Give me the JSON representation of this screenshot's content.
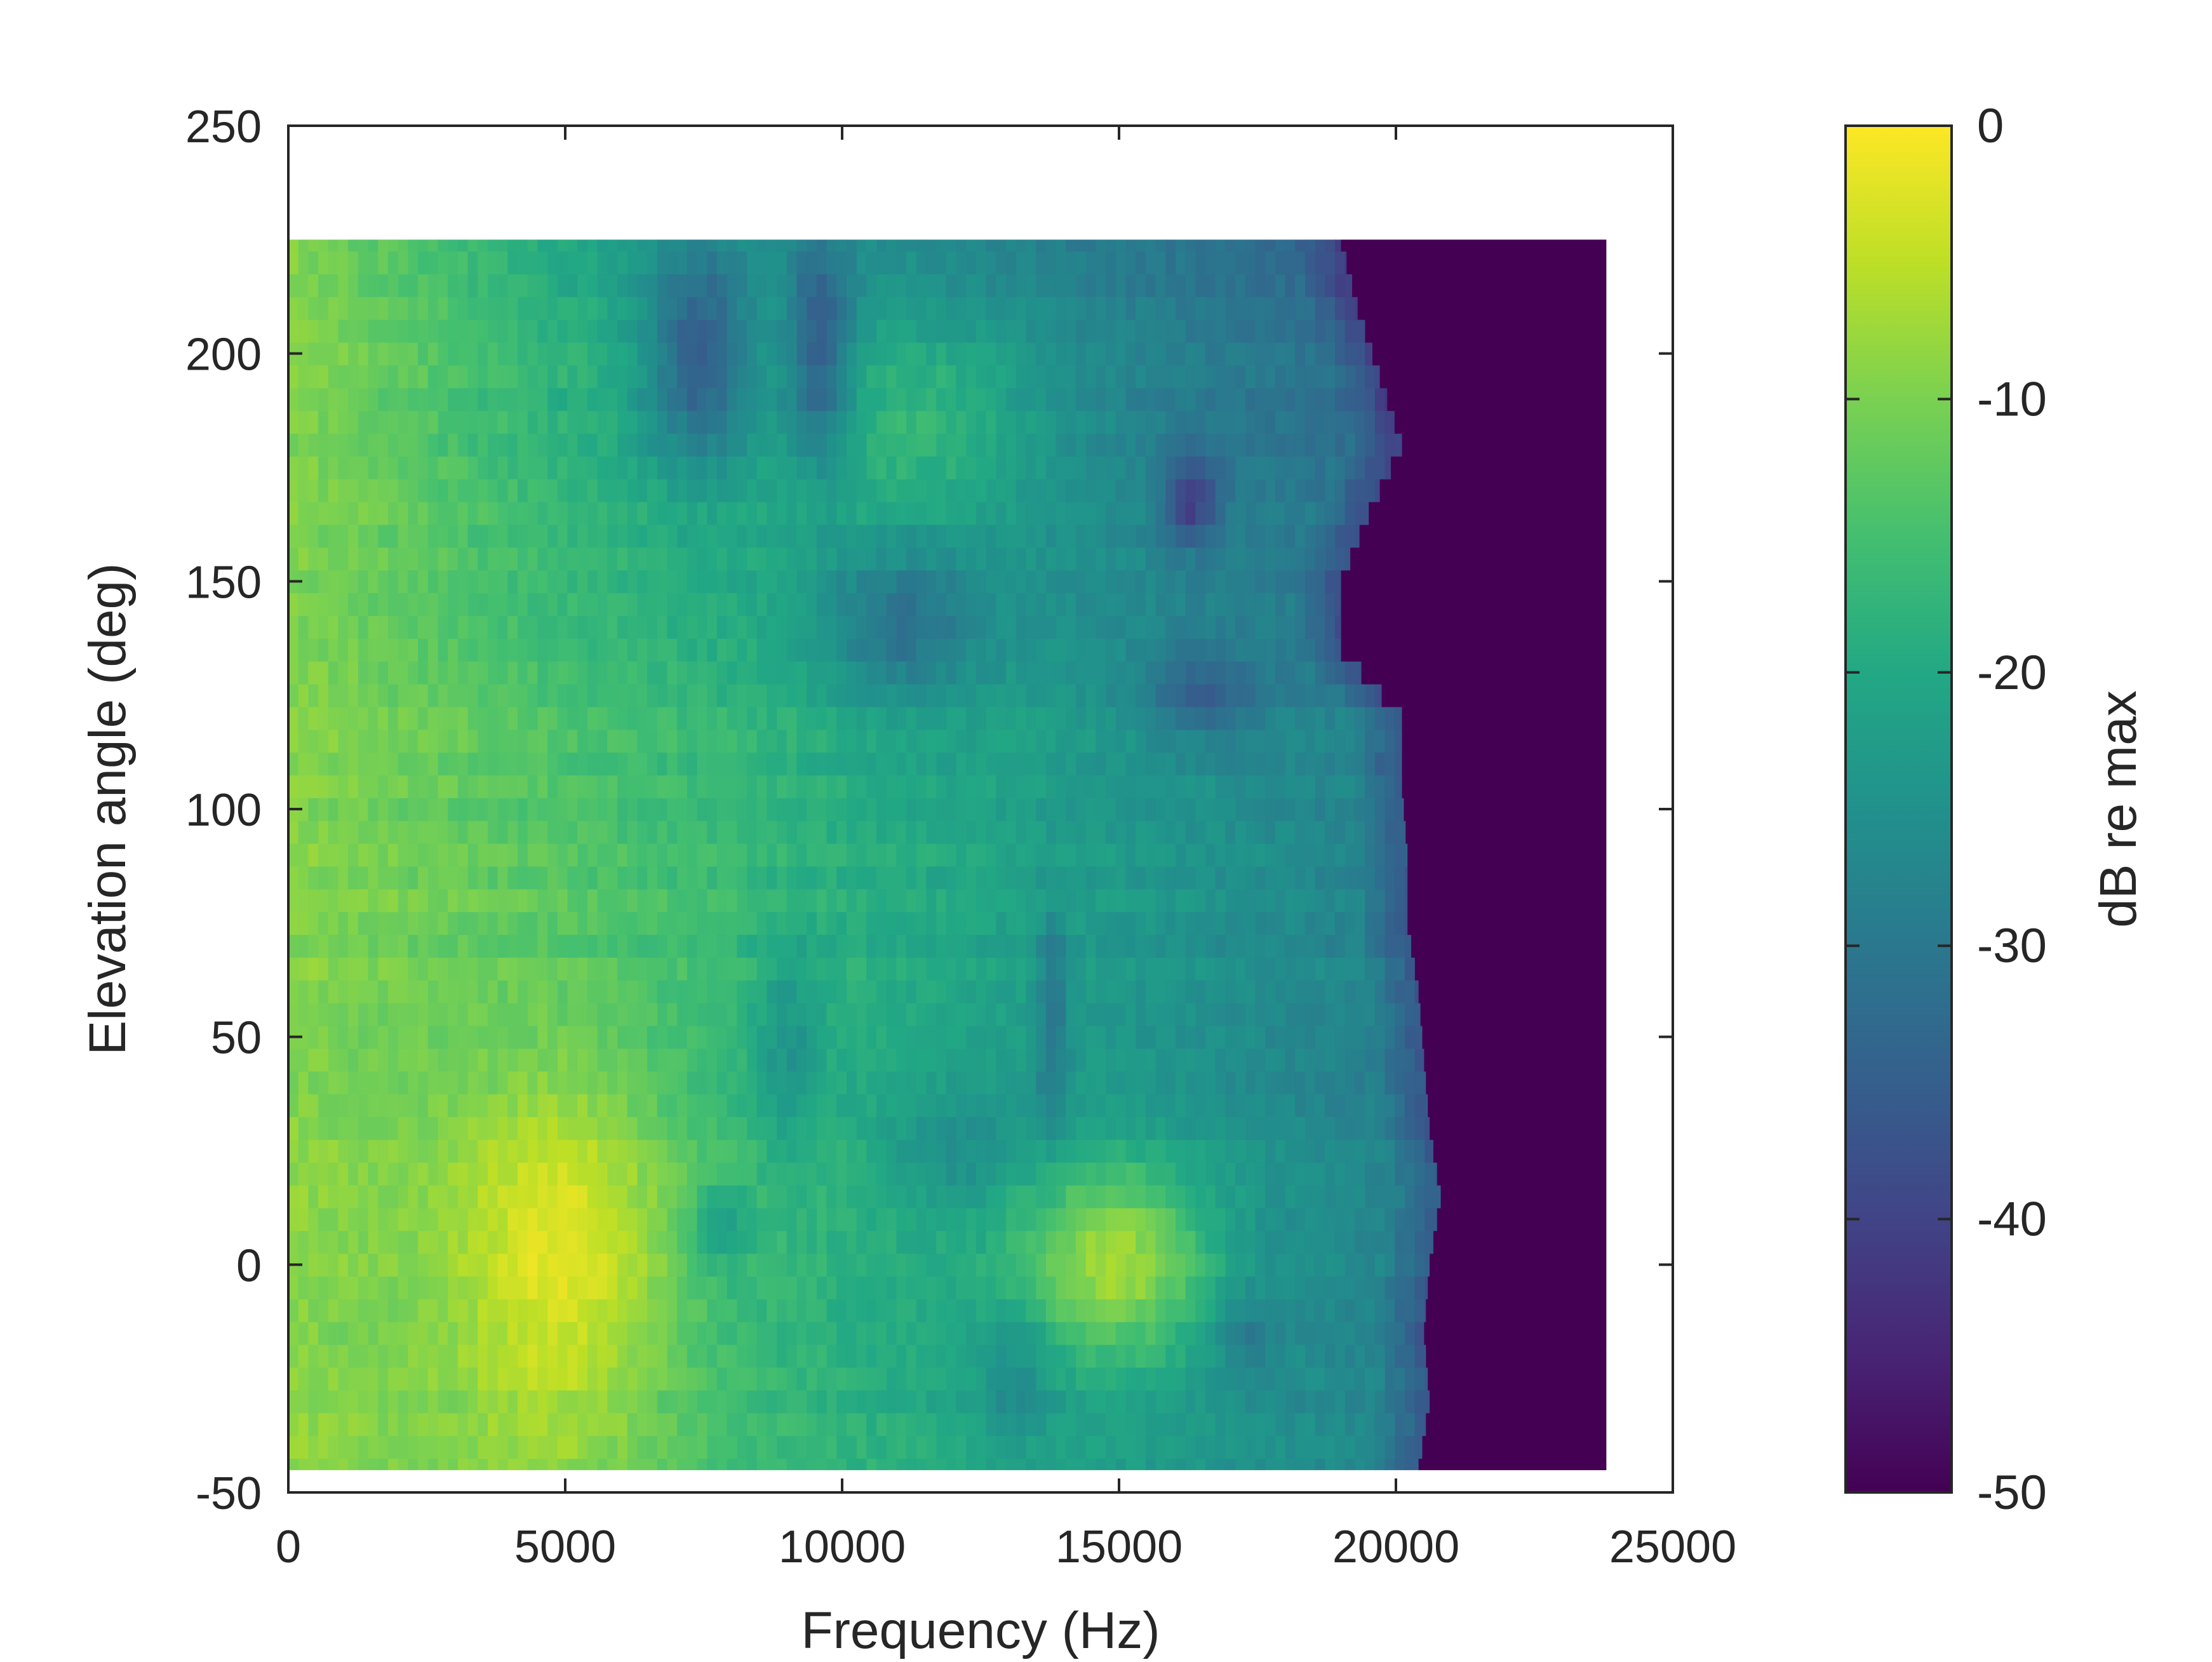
{
  "chart_data": {
    "type": "heatmap",
    "title": "",
    "xlabel": "Frequency (Hz)",
    "ylabel": "Elevation angle (deg)",
    "xlim": [
      0,
      25000
    ],
    "ylim": [
      -50,
      250
    ],
    "xticks": [
      0,
      5000,
      10000,
      15000,
      20000,
      25000
    ],
    "xtick_labels": [
      "0",
      "5000",
      "10000",
      "15000",
      "20000",
      "25000"
    ],
    "yticks": [
      -50,
      0,
      50,
      100,
      150,
      200,
      250
    ],
    "ytick_labels": [
      "-50",
      "0",
      "50",
      "100",
      "150",
      "200",
      "250"
    ],
    "grid": false,
    "colormap": "viridis",
    "colorbar": {
      "label": "dB re max",
      "range": [
        -50,
        0
      ],
      "ticks": [
        0,
        -10,
        -20,
        -30,
        -40,
        -50
      ],
      "tick_labels": [
        "0",
        "-10",
        "-20",
        "-30",
        "-40",
        "-50"
      ]
    },
    "elevation_rows_deg": [
      -45,
      -40,
      -35,
      -30,
      -25,
      -20,
      -15,
      -10,
      -5,
      0,
      5,
      10,
      15,
      20,
      25,
      30,
      35,
      40,
      45,
      50,
      55,
      60,
      65,
      70,
      75,
      80,
      85,
      90,
      95,
      100,
      105,
      110,
      115,
      120,
      125,
      130,
      135,
      140,
      145,
      150,
      155,
      160,
      165,
      170,
      175,
      180,
      185,
      190,
      195,
      200,
      205,
      210,
      215,
      220,
      225
    ],
    "data_frequency_range_hz": [
      0,
      23800
    ],
    "spectral_cutoff_hz": [
      [
        -45,
        20400
      ],
      [
        -30,
        20600
      ],
      [
        -15,
        20500
      ],
      [
        0,
        20600
      ],
      [
        15,
        20800
      ],
      [
        30,
        20600
      ],
      [
        45,
        20500
      ],
      [
        60,
        20400
      ],
      [
        75,
        20200
      ],
      [
        90,
        20200
      ],
      [
        105,
        20100
      ],
      [
        120,
        20100
      ],
      [
        135,
        19000
      ],
      [
        150,
        19000
      ],
      [
        165,
        19500
      ],
      [
        180,
        20100
      ],
      [
        195,
        19700
      ],
      [
        210,
        19300
      ],
      [
        225,
        19000
      ]
    ],
    "features": {
      "main_peak": {
        "frequency_hz": 5000,
        "elevation_deg": 0,
        "level_db": -2
      },
      "secondary_peak": {
        "frequency_hz": 15000,
        "elevation_deg": 0,
        "level_db": -9
      },
      "high_frequency_floor_db": -50
    }
  }
}
